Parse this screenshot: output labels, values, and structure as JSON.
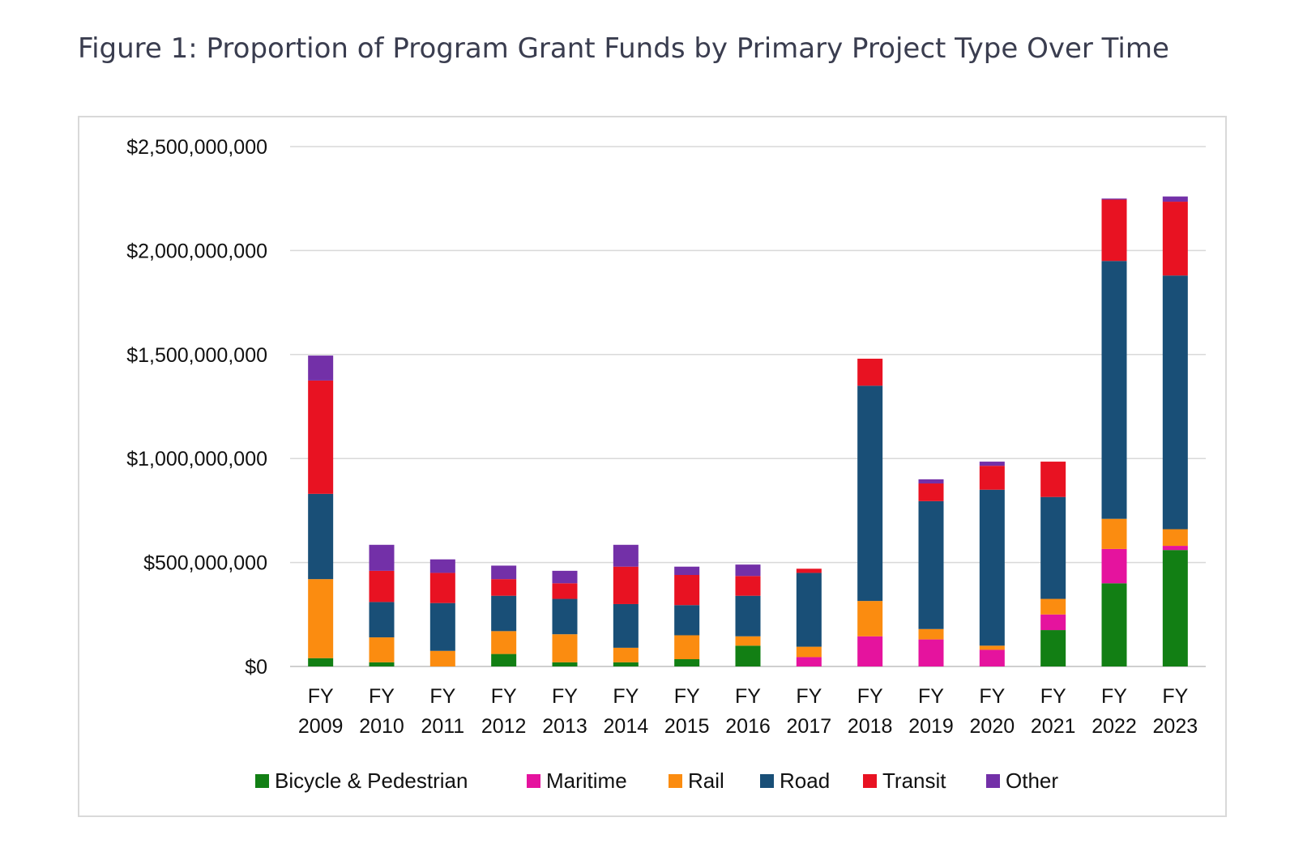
{
  "title": "Figure 1: Proportion of Program Grant Funds by Primary Project Type Over Time",
  "chart_data": {
    "type": "bar",
    "stacked": true,
    "title": "",
    "xlabel": "",
    "ylabel": "",
    "ylim": [
      0,
      2500000000
    ],
    "yticks": [
      0,
      500000000,
      1000000000,
      1500000000,
      2000000000,
      2500000000
    ],
    "ytick_labels": [
      "$0",
      "$500,000,000",
      "$1,000,000,000",
      "$1,500,000,000",
      "$2,000,000,000",
      "$2,500,000,000"
    ],
    "grid": true,
    "legend": "bottom",
    "categories": [
      [
        "FY",
        "2009"
      ],
      [
        "FY",
        "2010"
      ],
      [
        "FY",
        "2011"
      ],
      [
        "FY",
        "2012"
      ],
      [
        "FY",
        "2013"
      ],
      [
        "FY",
        "2014"
      ],
      [
        "FY",
        "2015"
      ],
      [
        "FY",
        "2016"
      ],
      [
        "FY",
        "2017"
      ],
      [
        "FY",
        "2018"
      ],
      [
        "FY",
        "2019"
      ],
      [
        "FY",
        "2020"
      ],
      [
        "FY",
        "2021"
      ],
      [
        "FY",
        "2022"
      ],
      [
        "FY",
        "2023"
      ]
    ],
    "series": [
      {
        "name": "Bicycle & Pedestrian",
        "color": "#127f14",
        "values": [
          40000000,
          20000000,
          0,
          60000000,
          20000000,
          20000000,
          35000000,
          100000000,
          0,
          0,
          0,
          0,
          175000000,
          400000000,
          560000000
        ]
      },
      {
        "name": "Maritime",
        "color": "#e5139e",
        "values": [
          0,
          0,
          0,
          0,
          0,
          0,
          0,
          0,
          45000000,
          145000000,
          130000000,
          80000000,
          75000000,
          165000000,
          20000000
        ]
      },
      {
        "name": "Rail",
        "color": "#fb8c10",
        "values": [
          380000000,
          120000000,
          75000000,
          110000000,
          135000000,
          70000000,
          115000000,
          45000000,
          50000000,
          170000000,
          50000000,
          20000000,
          75000000,
          145000000,
          80000000
        ]
      },
      {
        "name": "Road",
        "color": "#194f77",
        "values": [
          410000000,
          170000000,
          230000000,
          170000000,
          170000000,
          210000000,
          145000000,
          195000000,
          355000000,
          1035000000,
          615000000,
          750000000,
          490000000,
          1240000000,
          1220000000
        ]
      },
      {
        "name": "Transit",
        "color": "#e81222",
        "values": [
          545000000,
          150000000,
          145000000,
          80000000,
          75000000,
          180000000,
          145000000,
          95000000,
          20000000,
          130000000,
          85000000,
          115000000,
          170000000,
          295000000,
          355000000
        ]
      },
      {
        "name": "Other",
        "color": "#7330a8",
        "values": [
          120000000,
          125000000,
          65000000,
          65000000,
          60000000,
          105000000,
          40000000,
          55000000,
          0,
          0,
          20000000,
          20000000,
          0,
          5000000,
          25000000
        ]
      }
    ]
  }
}
